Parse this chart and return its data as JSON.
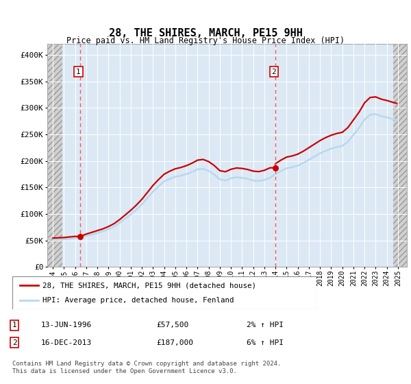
{
  "title": "28, THE SHIRES, MARCH, PE15 9HH",
  "subtitle": "Price paid vs. HM Land Registry's House Price Index (HPI)",
  "ylabel_ticks": [
    "£0",
    "£50K",
    "£100K",
    "£150K",
    "£200K",
    "£250K",
    "£300K",
    "£350K",
    "£400K"
  ],
  "ytick_vals": [
    0,
    50000,
    100000,
    150000,
    200000,
    250000,
    300000,
    350000,
    400000
  ],
  "ylim": [
    0,
    420000
  ],
  "xlim_start": 1993.5,
  "xlim_end": 2025.8,
  "hpi_color": "#b8d8f0",
  "price_color": "#cc0000",
  "dashed_color": "#ff5555",
  "background_color": "#dce9f5",
  "legend_line1": "28, THE SHIRES, MARCH, PE15 9HH (detached house)",
  "legend_line2": "HPI: Average price, detached house, Fenland",
  "annotation1_date": "13-JUN-1996",
  "annotation1_price": "£57,500",
  "annotation1_hpi": "2% ↑ HPI",
  "annotation1_year": 1996.45,
  "annotation1_value": 57500,
  "annotation2_date": "16-DEC-2013",
  "annotation2_price": "£187,000",
  "annotation2_hpi": "6% ↑ HPI",
  "annotation2_year": 2013.96,
  "annotation2_value": 187000,
  "footer": "Contains HM Land Registry data © Crown copyright and database right 2024.\nThis data is licensed under the Open Government Licence v3.0.",
  "xtick_years": [
    1994,
    1995,
    1996,
    1997,
    1998,
    1999,
    2000,
    2001,
    2002,
    2003,
    2004,
    2005,
    2006,
    2007,
    2008,
    2009,
    2010,
    2011,
    2012,
    2013,
    2014,
    2015,
    2016,
    2017,
    2018,
    2019,
    2020,
    2021,
    2022,
    2023,
    2024,
    2025
  ],
  "hatch_left_end": 1994.85,
  "hatch_right_start": 2024.6
}
